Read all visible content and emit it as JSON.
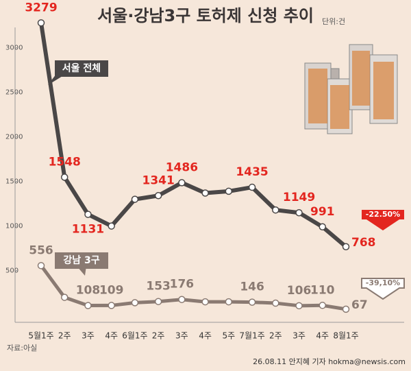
{
  "chart_data": {
    "type": "line",
    "title": "서울·강남3구 토허제 신청 추이",
    "unit": "단위:건",
    "source": "자료:아실",
    "credit": "26.08.11 안지혜 기자 hokma@newsis.com",
    "categories": [
      "5월1주",
      "2주",
      "3주",
      "4주",
      "6월1주",
      "2주",
      "3주",
      "4주",
      "5주",
      "7월1주",
      "2주",
      "3주",
      "4주",
      "8월1주"
    ],
    "series": [
      {
        "name": "서울 전체",
        "color": "#4a4747",
        "label_color": "#e3261f",
        "values": [
          3279,
          1548,
          1131,
          1000,
          1300,
          1341,
          1486,
          1370,
          1390,
          1435,
          1180,
          1149,
          991,
          768
        ],
        "value_labels": [
          "3279",
          "1548",
          "1131",
          null,
          null,
          "1341",
          "1486",
          null,
          null,
          "1435",
          null,
          "1149",
          "991",
          "768"
        ],
        "change": "-22.50%",
        "change_color": "#e3261f"
      },
      {
        "name": "강남 3구",
        "color": "#8a7a72",
        "label_color": "#8a7a72",
        "values": [
          556,
          200,
          108,
          109,
          140,
          153,
          176,
          150,
          150,
          146,
          135,
          106,
          110,
          67
        ],
        "value_labels": [
          "556",
          null,
          "108",
          "109",
          null,
          "153",
          "176",
          null,
          null,
          "146",
          null,
          "106",
          "110",
          "67"
        ],
        "change": "-39,10%",
        "change_color": "#8a7a72"
      }
    ],
    "ylim": [
      -80,
      3420
    ],
    "yticks": [
      500,
      1000,
      1500,
      2000,
      2500,
      3000
    ],
    "grid": false
  }
}
